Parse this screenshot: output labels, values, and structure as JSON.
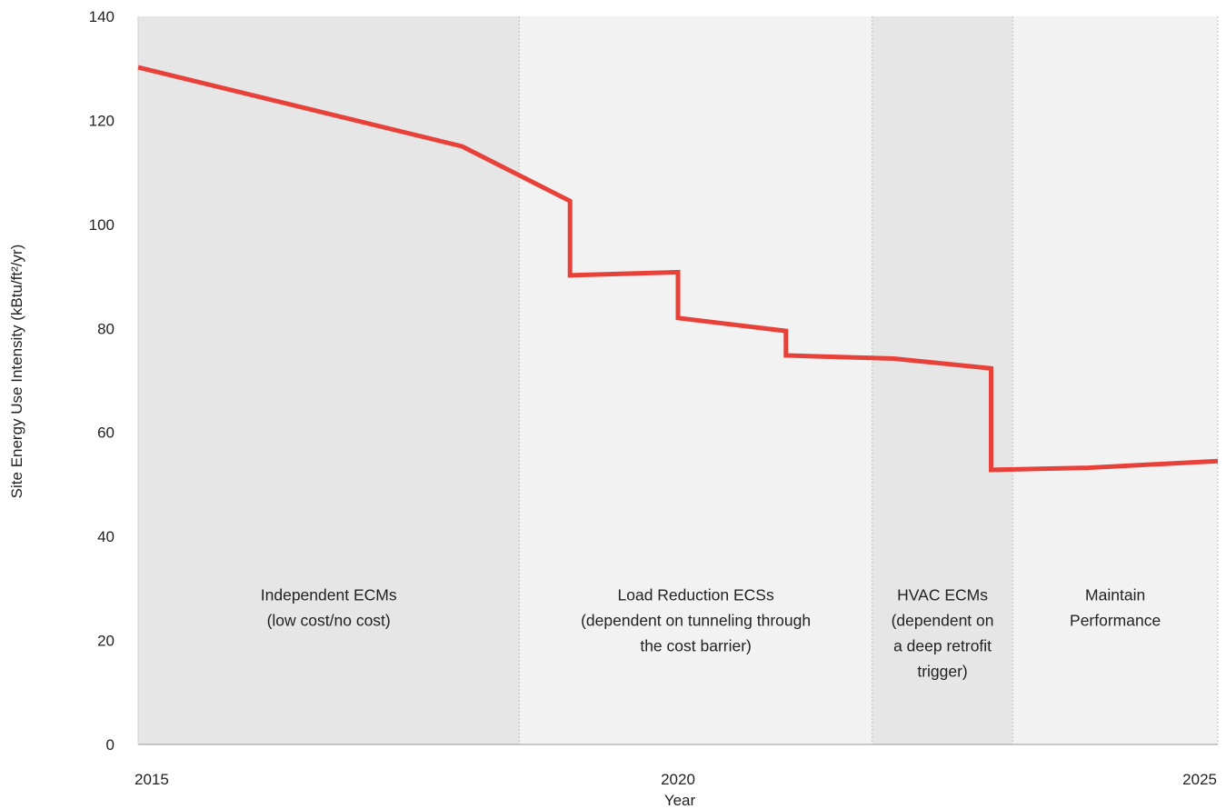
{
  "chart_data": {
    "type": "line",
    "title": "",
    "xlabel": "Year",
    "ylabel": "Site Energy Use Intensity (kBtu/ft²/yr)",
    "xlim": [
      2015,
      2025
    ],
    "ylim": [
      0,
      140
    ],
    "x_ticks": [
      "2015",
      "2020",
      "2025"
    ],
    "y_ticks": [
      "0",
      "20",
      "40",
      "60",
      "80",
      "100",
      "120",
      "140"
    ],
    "grid": false,
    "series": [
      {
        "color": "#e8413a",
        "points": [
          {
            "x": 2015.0,
            "y": 130.2
          },
          {
            "x": 2018.0,
            "y": 115.0
          },
          {
            "x": 2019.0,
            "y": 104.5
          },
          {
            "x": 2019.0,
            "y": 90.2
          },
          {
            "x": 2020.0,
            "y": 90.8
          },
          {
            "x": 2020.0,
            "y": 82.0
          },
          {
            "x": 2021.0,
            "y": 79.5
          },
          {
            "x": 2021.0,
            "y": 74.8
          },
          {
            "x": 2022.0,
            "y": 74.2
          },
          {
            "x": 2022.9,
            "y": 72.3
          },
          {
            "x": 2022.9,
            "y": 52.8
          },
          {
            "x": 2023.8,
            "y": 53.2
          },
          {
            "x": 2025.0,
            "y": 54.5
          }
        ]
      }
    ],
    "phases": [
      {
        "x_start": 2015.0,
        "x_end": 2018.53,
        "fill": "#e6e6e6",
        "label_lines": [
          "Independent ECMs",
          "(low cost/no cost)"
        ]
      },
      {
        "x_start": 2018.53,
        "x_end": 2021.8,
        "fill": "#f2f2f2",
        "label_lines": [
          "Load Reduction ECSs",
          "(dependent on tunneling through",
          "the cost barrier)"
        ]
      },
      {
        "x_start": 2021.8,
        "x_end": 2023.1,
        "fill": "#e6e6e6",
        "label_lines": [
          "HVAC ECMs",
          "(dependent on",
          "a deep retrofit",
          "trigger)"
        ]
      },
      {
        "x_start": 2023.1,
        "x_end": 2025.0,
        "fill": "#f2f2f2",
        "label_lines": [
          "Maintain",
          "Performance"
        ]
      }
    ]
  }
}
